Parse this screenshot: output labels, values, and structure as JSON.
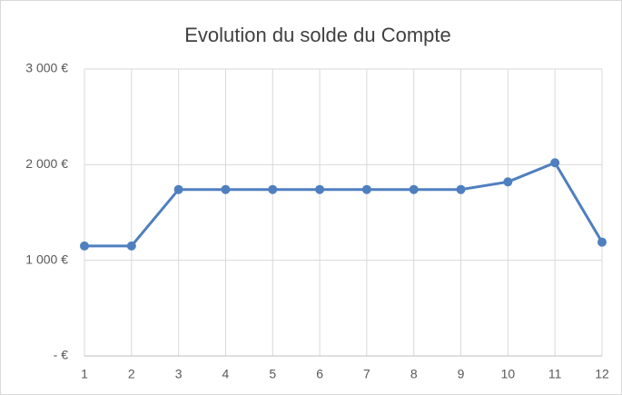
{
  "chart_data": {
    "type": "line",
    "title": "Evolution du solde du Compte",
    "categories": [
      "1",
      "2",
      "3",
      "4",
      "5",
      "6",
      "7",
      "8",
      "9",
      "10",
      "11",
      "12"
    ],
    "series": [
      {
        "color": "#4f7fbf",
        "values": [
          1150,
          1150,
          1740,
          1740,
          1740,
          1740,
          1740,
          1740,
          1740,
          1820,
          2020,
          1190
        ]
      }
    ],
    "ylim": [
      0,
      3000
    ],
    "yticks": [
      {
        "value": 0,
        "label": "- €"
      },
      {
        "value": 1000,
        "label": "1 000 €"
      },
      {
        "value": 2000,
        "label": "2 000 €"
      },
      {
        "value": 3000,
        "label": "3 000 €"
      }
    ],
    "grid": true
  }
}
